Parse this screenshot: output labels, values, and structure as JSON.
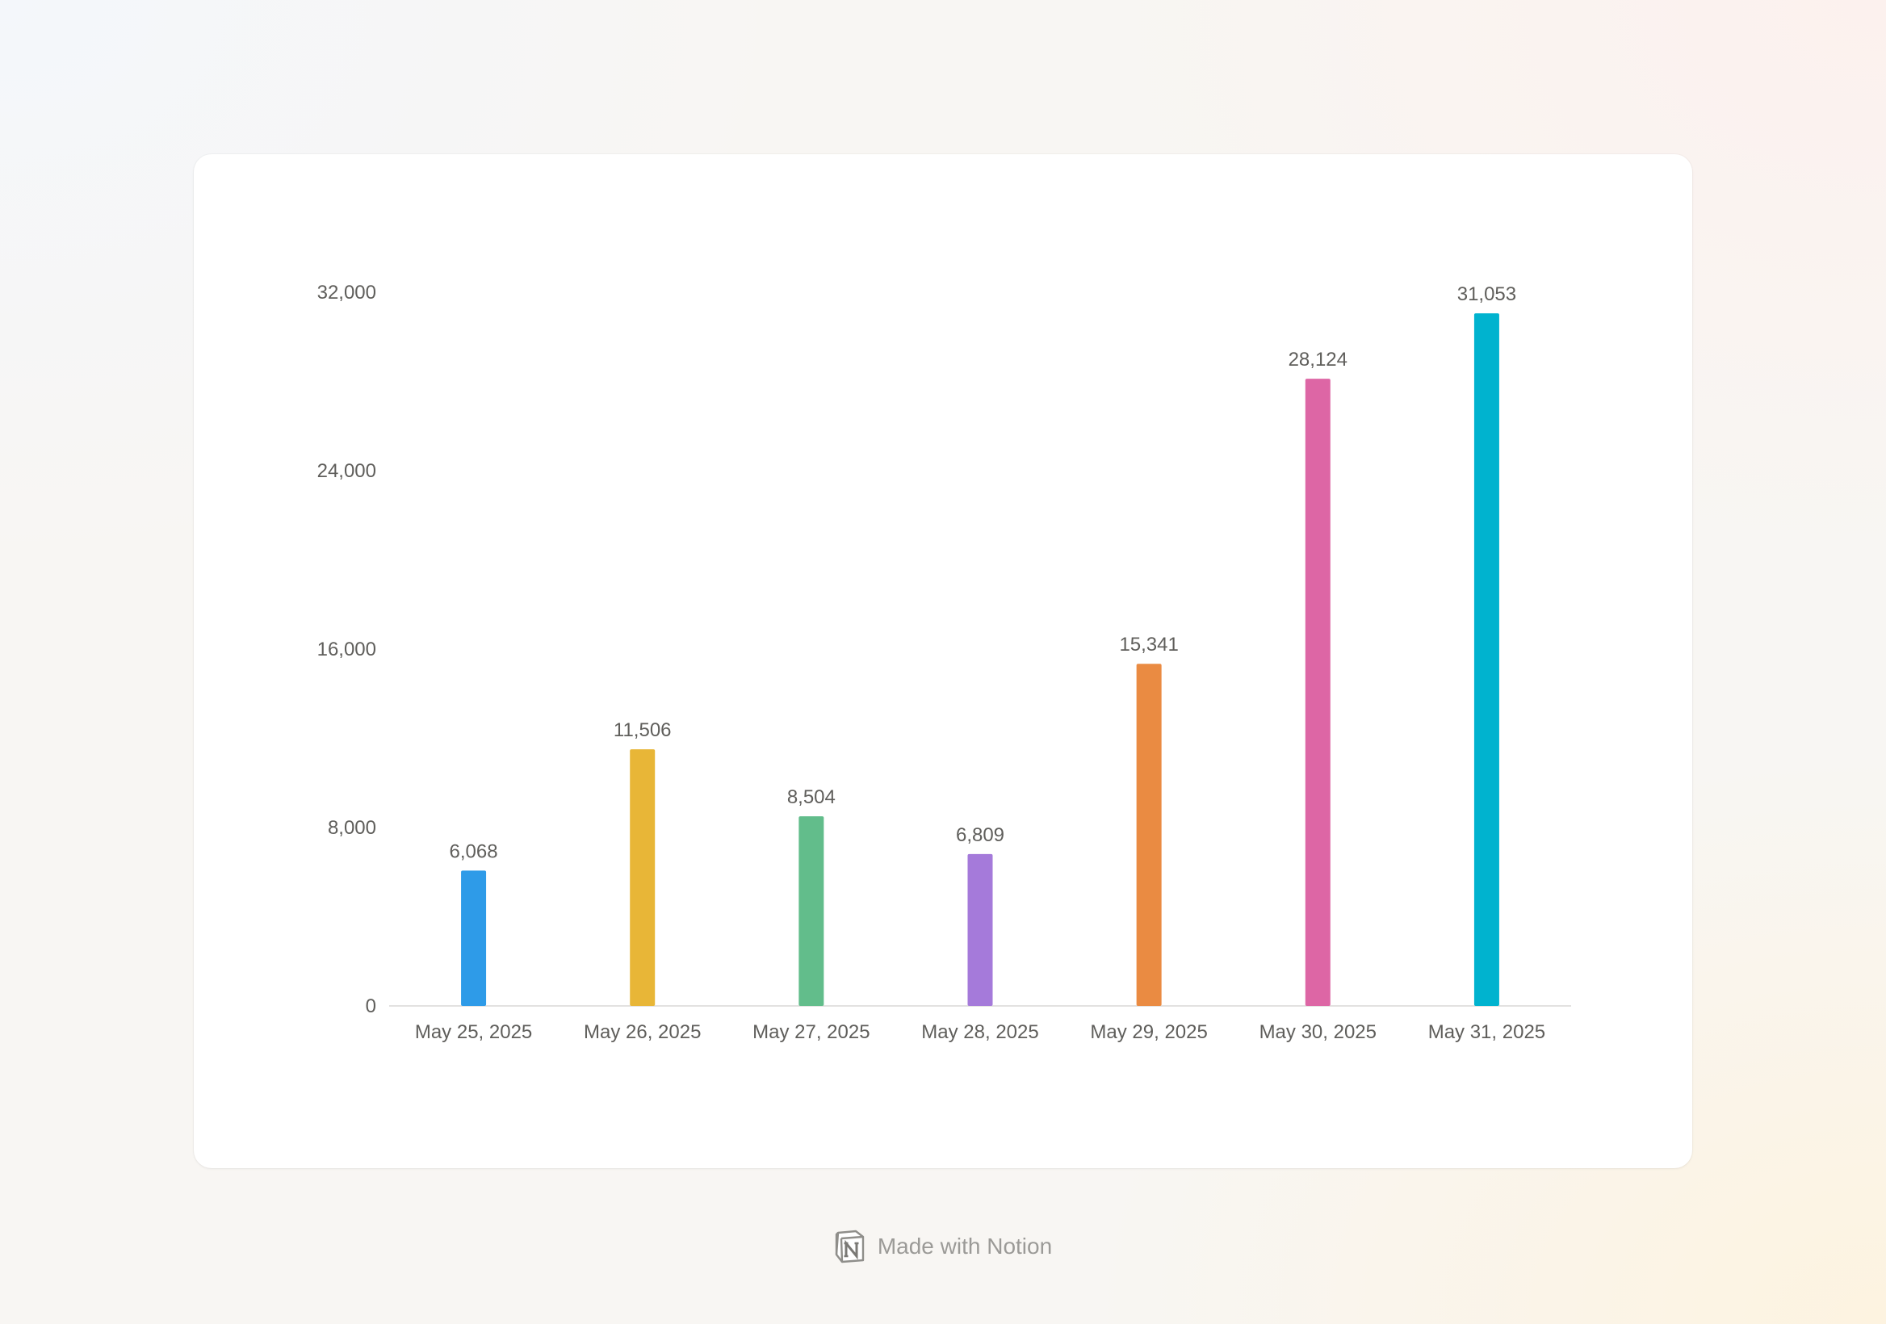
{
  "chart_data": {
    "type": "bar",
    "categories": [
      "May 25, 2025",
      "May 26, 2025",
      "May 27, 2025",
      "May 28, 2025",
      "May 29, 2025",
      "May 30, 2025",
      "May 31, 2025"
    ],
    "values": [
      6068,
      11506,
      8504,
      6809,
      15341,
      28124,
      31053
    ],
    "value_labels": [
      "6,068",
      "11,506",
      "8,504",
      "6,809",
      "15,341",
      "28,124",
      "31,053"
    ],
    "colors": [
      "#2e9be8",
      "#e8b637",
      "#62bd8b",
      "#a57ada",
      "#ea8b42",
      "#dd66a5",
      "#00b3cf"
    ],
    "yticks": [
      0,
      8000,
      16000,
      24000,
      32000
    ],
    "ytick_labels": [
      "0",
      "8,000",
      "16,000",
      "24,000",
      "32,000"
    ],
    "ylim": [
      0,
      32000
    ],
    "title": "",
    "xlabel": "",
    "ylabel": "",
    "grid": false,
    "legend": "none"
  },
  "footer": {
    "text": "Made with Notion",
    "logo_icon": "notion-logo-icon"
  }
}
